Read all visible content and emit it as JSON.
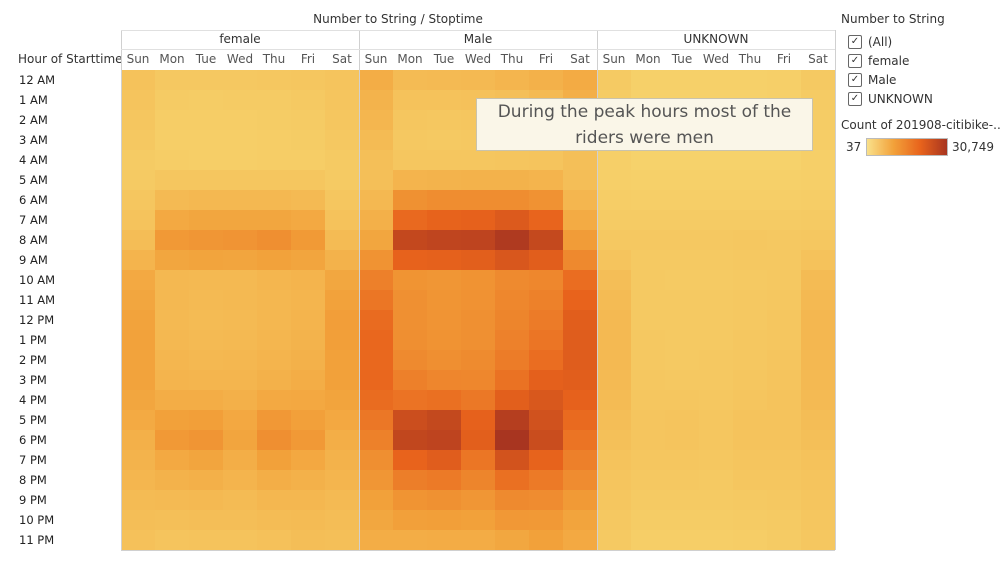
{
  "chart_data": {
    "type": "heatmap",
    "title": "Number to String / Stoptime",
    "row_header": "Hour of Starttime",
    "groups": [
      "female",
      "Male",
      "UNKNOWN"
    ],
    "days": [
      "Sun",
      "Mon",
      "Tue",
      "Wed",
      "Thu",
      "Fri",
      "Sat"
    ],
    "hours": [
      "12 AM",
      "1 AM",
      "2 AM",
      "3 AM",
      "4 AM",
      "5 AM",
      "6 AM",
      "7 AM",
      "8 AM",
      "9 AM",
      "10 AM",
      "11 AM",
      "12 PM",
      "1 PM",
      "2 PM",
      "3 PM",
      "4 PM",
      "5 PM",
      "6 PM",
      "7 PM",
      "8 PM",
      "9 PM",
      "10 PM",
      "11 PM"
    ],
    "color_min": 37,
    "color_max": 30749,
    "color_stops": [
      "#f6d36c",
      "#f2a13a",
      "#e8631c",
      "#a83520"
    ],
    "series": [
      {
        "name": "female",
        "values": [
          [
            3500,
            2200,
            2200,
            2300,
            2500,
            2700,
            3200
          ],
          [
            3200,
            1600,
            1500,
            1600,
            1700,
            2000,
            3000
          ],
          [
            2800,
            1300,
            1200,
            1300,
            1400,
            1600,
            2700
          ],
          [
            2300,
            1100,
            1000,
            1100,
            1200,
            1400,
            2300
          ],
          [
            1700,
            1200,
            1100,
            1100,
            1200,
            1300,
            1800
          ],
          [
            1800,
            2600,
            2700,
            2700,
            2700,
            2600,
            1900
          ],
          [
            2600,
            5200,
            5600,
            5500,
            5500,
            5200,
            2700
          ],
          [
            3300,
            8600,
            9200,
            9300,
            9200,
            8600,
            3600
          ],
          [
            4500,
            11600,
            12100,
            12400,
            13300,
            11500,
            4900
          ],
          [
            6400,
            9300,
            9600,
            9500,
            10000,
            9400,
            6700
          ],
          [
            8600,
            5500,
            5300,
            5400,
            5900,
            6300,
            9000
          ],
          [
            9200,
            5500,
            5200,
            5300,
            5700,
            6200,
            10100
          ],
          [
            9900,
            5400,
            5000,
            5200,
            5800,
            6400,
            10700
          ],
          [
            10100,
            5500,
            5200,
            5300,
            5900,
            6600,
            10600
          ],
          [
            9900,
            5900,
            5600,
            5800,
            6300,
            7100,
            10300
          ],
          [
            9800,
            6400,
            6100,
            6100,
            6900,
            7800,
            10200
          ],
          [
            9300,
            7800,
            7800,
            7200,
            8600,
            8800,
            9600
          ],
          [
            8500,
            10200,
            10600,
            8800,
            11700,
            10400,
            8800
          ],
          [
            7300,
            11600,
            12300,
            9400,
            13300,
            11600,
            7600
          ],
          [
            6500,
            8700,
            9400,
            7600,
            10300,
            8900,
            6700
          ],
          [
            5900,
            6700,
            7200,
            6300,
            7700,
            7100,
            6100
          ],
          [
            4900,
            5100,
            5400,
            5000,
            5800,
            5800,
            5200
          ],
          [
            4300,
            4200,
            4300,
            4300,
            4800,
            5000,
            4600
          ],
          [
            3800,
            3200,
            3300,
            3400,
            3800,
            4400,
            4200
          ]
        ]
      },
      {
        "name": "Male",
        "values": [
          [
            7800,
            5000,
            5200,
            5400,
            6100,
            6900,
            8300
          ],
          [
            6600,
            3600,
            3500,
            3700,
            4200,
            5100,
            7400
          ],
          [
            5900,
            2600,
            2500,
            2700,
            3100,
            3900,
            6300
          ],
          [
            5000,
            2300,
            2100,
            2300,
            2600,
            3100,
            5400
          ],
          [
            4100,
            2700,
            2600,
            2600,
            2900,
            3200,
            4200
          ],
          [
            4200,
            6400,
            6600,
            6700,
            6800,
            6300,
            4400
          ],
          [
            5600,
            12900,
            13600,
            13600,
            13600,
            12700,
            6000
          ],
          [
            7300,
            19500,
            20600,
            20900,
            22500,
            20300,
            8300
          ],
          [
            9300,
            26500,
            27100,
            27300,
            29600,
            26200,
            11100
          ],
          [
            12600,
            20700,
            21000,
            21400,
            23100,
            21700,
            14200
          ],
          [
            15800,
            12500,
            12100,
            12600,
            14100,
            14600,
            18900
          ],
          [
            17300,
            13000,
            12300,
            12700,
            14600,
            15600,
            20500
          ],
          [
            19200,
            13000,
            12400,
            13000,
            14900,
            16500,
            21600
          ],
          [
            19800,
            13300,
            12600,
            13100,
            15500,
            17600,
            21900
          ],
          [
            19700,
            14000,
            13300,
            13900,
            16400,
            18900,
            21900
          ],
          [
            19900,
            15700,
            14800,
            14600,
            18100,
            21100,
            21600
          ],
          [
            19000,
            17900,
            18300,
            17000,
            21500,
            23000,
            20900
          ],
          [
            17200,
            25200,
            26400,
            20900,
            28700,
            24400,
            19400
          ],
          [
            15600,
            26800,
            27300,
            21400,
            30749,
            25400,
            17700
          ],
          [
            13300,
            20500,
            21800,
            17400,
            24100,
            20600,
            15700
          ],
          [
            12100,
            16000,
            16700,
            14900,
            18300,
            16700,
            13700
          ],
          [
            10300,
            12500,
            12900,
            12100,
            14000,
            13700,
            11500
          ],
          [
            9000,
            10400,
            10600,
            10200,
            11700,
            11600,
            9700
          ],
          [
            7800,
            7900,
            8000,
            8100,
            9100,
            10200,
            8700
          ]
        ]
      },
      {
        "name": "UNKNOWN",
        "values": [
          [
            1800,
            600,
            600,
            600,
            700,
            900,
            2000
          ],
          [
            1500,
            400,
            400,
            400,
            500,
            700,
            1700
          ],
          [
            1300,
            300,
            300,
            300,
            400,
            600,
            1500
          ],
          [
            1100,
            300,
            300,
            300,
            300,
            400,
            1200
          ],
          [
            900,
            300,
            300,
            300,
            300,
            300,
            900
          ],
          [
            900,
            600,
            600,
            600,
            700,
            600,
            900
          ],
          [
            1200,
            1100,
            1100,
            1100,
            1100,
            1100,
            1300
          ],
          [
            1600,
            1600,
            1600,
            1600,
            1700,
            1600,
            1800
          ],
          [
            2200,
            2300,
            2300,
            2300,
            2500,
            2300,
            2500
          ],
          [
            3200,
            2100,
            2100,
            2100,
            2300,
            2200,
            3500
          ],
          [
            4400,
            2000,
            1900,
            1900,
            2100,
            2300,
            4900
          ],
          [
            4900,
            2100,
            2000,
            2000,
            2200,
            2500,
            5400
          ],
          [
            5300,
            2100,
            2000,
            2000,
            2300,
            2600,
            5800
          ],
          [
            5400,
            2200,
            2000,
            2100,
            2400,
            2700,
            5800
          ],
          [
            5300,
            2300,
            2100,
            2200,
            2500,
            2900,
            5600
          ],
          [
            5200,
            2400,
            2300,
            2300,
            2700,
            3100,
            5400
          ],
          [
            4900,
            2700,
            2600,
            2500,
            3000,
            3300,
            5100
          ],
          [
            4400,
            3000,
            3100,
            2700,
            3400,
            3400,
            4600
          ],
          [
            3900,
            3000,
            3100,
            2700,
            3400,
            3300,
            4100
          ],
          [
            3400,
            2600,
            2700,
            2400,
            3000,
            3000,
            3600
          ],
          [
            3000,
            2200,
            2300,
            2100,
            2600,
            2600,
            3200
          ],
          [
            2600,
            1800,
            1800,
            1800,
            2100,
            2200,
            2900
          ],
          [
            2300,
            1400,
            1400,
            1400,
            1700,
            1900,
            2600
          ],
          [
            2000,
            1000,
            1000,
            1000,
            1300,
            1600,
            2400
          ]
        ]
      }
    ]
  },
  "annotation": {
    "line1": "During the peak hours most of the",
    "line2": "riders were men"
  },
  "legend": {
    "filter_title": "Number to String",
    "filter_items": [
      {
        "label": "(All)",
        "checked": true
      },
      {
        "label": "female",
        "checked": true
      },
      {
        "label": "Male",
        "checked": true
      },
      {
        "label": "UNKNOWN",
        "checked": true
      }
    ],
    "color_title": "Count of 201908-citibike-..",
    "min_label": "37",
    "max_label": "30,749"
  }
}
